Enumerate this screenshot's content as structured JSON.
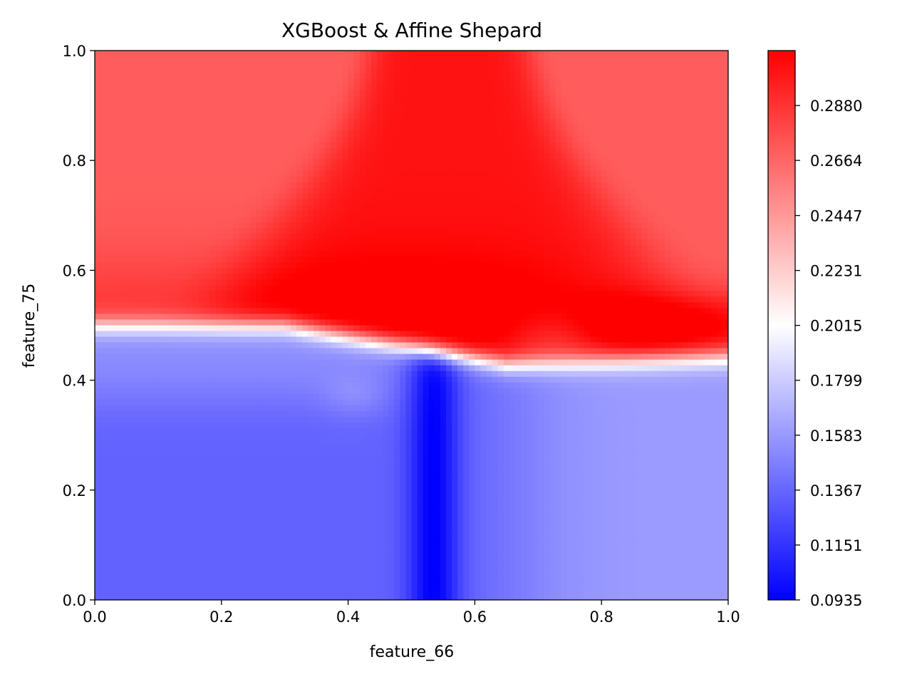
{
  "chart_data": {
    "type": "heatmap",
    "title": "XGBoost & Affine Shepard",
    "xlabel": "feature_66",
    "ylabel": "feature_75",
    "xlim": [
      0.0,
      1.0
    ],
    "ylim": [
      0.0,
      1.0
    ],
    "x_ticks": [
      "0.0",
      "0.2",
      "0.4",
      "0.6",
      "0.8",
      "1.0"
    ],
    "y_ticks": [
      "0.0",
      "0.2",
      "0.4",
      "0.6",
      "0.8",
      "1.0"
    ],
    "colormap": "bwr",
    "color_low": "#0000ff",
    "color_mid": "#ffffff",
    "color_high": "#ff0000",
    "colorbar": {
      "min": 0.0935,
      "max": 0.3096,
      "ticks": [
        "0.0935",
        "0.1151",
        "0.1367",
        "0.1583",
        "0.1799",
        "0.2015",
        "0.2231",
        "0.2447",
        "0.2664",
        "0.2880"
      ]
    },
    "grid": false,
    "regions": [
      {
        "name": "lower-left",
        "x": [
          0.0,
          0.45
        ],
        "y": [
          0.0,
          0.4
        ],
        "value": 0.135
      },
      {
        "name": "lower-center-dark",
        "x": [
          0.49,
          0.56
        ],
        "y": [
          0.0,
          0.43
        ],
        "value": 0.094
      },
      {
        "name": "lower-right",
        "x": [
          0.72,
          1.0
        ],
        "y": [
          0.0,
          0.43
        ],
        "value": 0.158
      },
      {
        "name": "mid-band-left",
        "x": [
          0.0,
          0.5
        ],
        "y": [
          0.38,
          0.5
        ],
        "value": 0.16
      },
      {
        "name": "upper-left",
        "x": [
          0.0,
          0.35
        ],
        "y": [
          0.6,
          1.0
        ],
        "value": 0.27
      },
      {
        "name": "upper-center",
        "x": [
          0.4,
          0.72
        ],
        "y": [
          0.45,
          1.0
        ],
        "value": 0.3
      },
      {
        "name": "upper-right",
        "x": [
          0.75,
          1.0
        ],
        "y": [
          0.6,
          1.0
        ],
        "value": 0.27
      },
      {
        "name": "right-mid-hot",
        "x": [
          0.75,
          1.0
        ],
        "y": [
          0.47,
          0.58
        ],
        "value": 0.309
      }
    ]
  }
}
